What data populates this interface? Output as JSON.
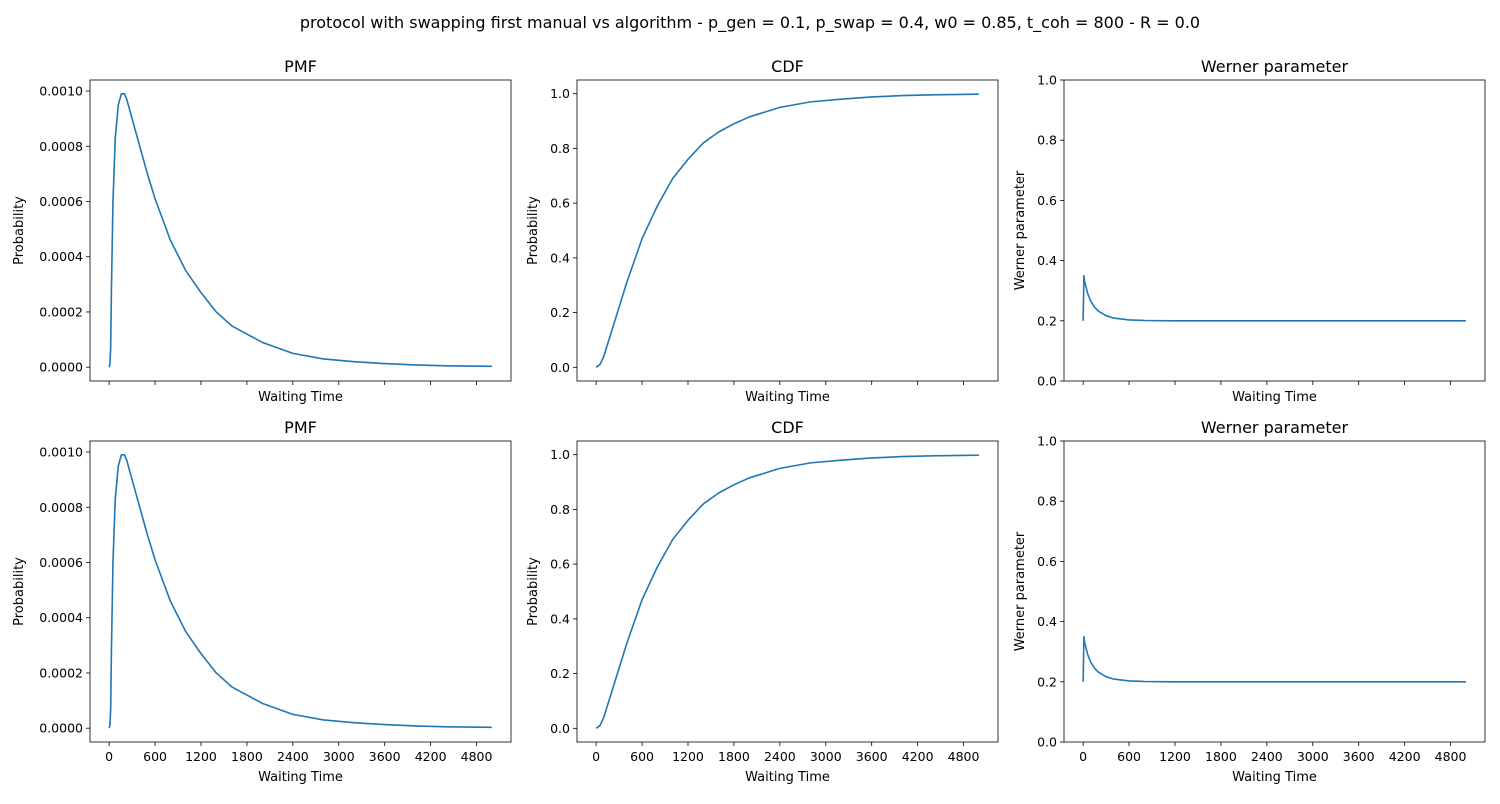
{
  "figure": {
    "title": "protocol with swapping first manual vs algorithm - p_gen = 0.1, p_swap = 0.4, w0 = 0.85, t_coh = 800 - R = 0.0"
  },
  "colors": {
    "line": "#1f77b4",
    "axes": "#000000",
    "background": "#ffffff"
  },
  "chart_data": [
    {
      "type": "line",
      "row": 0,
      "col": 0,
      "title": "PMF",
      "xlabel": "Waiting Time",
      "ylabel": "Probability",
      "xlim": [
        -250,
        5250
      ],
      "ylim": [
        -5e-05,
        0.00104
      ],
      "xticks": [
        0,
        600,
        1200,
        1800,
        2400,
        3000,
        3600,
        4200,
        4800
      ],
      "xtick_labels_shown": false,
      "yticks": [
        0.0,
        0.0002,
        0.0004,
        0.0006,
        0.0008,
        0.001
      ],
      "ytick_labels": [
        "0.0000",
        "0.0002",
        "0.0004",
        "0.0006",
        "0.0008",
        "0.0010"
      ],
      "grid": false,
      "series": [
        {
          "x": [
            0,
            10,
            20,
            30,
            50,
            80,
            120,
            160,
            200,
            230,
            260,
            300,
            400,
            500,
            600,
            800,
            1000,
            1200,
            1400,
            1600,
            1800,
            2000,
            2400,
            2800,
            3200,
            3600,
            4000,
            4400,
            5000
          ],
          "values": [
            0.0,
            1e-05,
            7e-05,
            0.00028,
            0.0006,
            0.00083,
            0.00095,
            0.00099,
            0.00099,
            0.00097,
            0.00094,
            0.0009,
            0.0008,
            0.0007,
            0.00061,
            0.00046,
            0.00035,
            0.00027,
            0.0002,
            0.00015,
            0.00012,
            9e-05,
            5e-05,
            3e-05,
            2e-05,
            1.3e-05,
            8e-06,
            5e-06,
            3e-06
          ]
        }
      ]
    },
    {
      "type": "line",
      "row": 0,
      "col": 1,
      "title": "CDF",
      "xlabel": "Waiting Time",
      "ylabel": "Probability",
      "xlim": [
        -250,
        5250
      ],
      "ylim": [
        -0.05,
        1.05
      ],
      "xticks": [
        0,
        600,
        1200,
        1800,
        2400,
        3000,
        3600,
        4200,
        4800
      ],
      "xtick_labels_shown": false,
      "yticks": [
        0.0,
        0.2,
        0.4,
        0.6,
        0.8,
        1.0
      ],
      "ytick_labels": [
        "0.0",
        "0.2",
        "0.4",
        "0.6",
        "0.8",
        "1.0"
      ],
      "grid": false,
      "series": [
        {
          "x": [
            0,
            50,
            100,
            200,
            300,
            400,
            600,
            800,
            1000,
            1200,
            1400,
            1600,
            1800,
            2000,
            2400,
            2800,
            3200,
            3600,
            4000,
            4400,
            5000
          ],
          "values": [
            0.0,
            0.01,
            0.04,
            0.13,
            0.22,
            0.31,
            0.47,
            0.59,
            0.69,
            0.76,
            0.82,
            0.86,
            0.89,
            0.915,
            0.95,
            0.97,
            0.98,
            0.988,
            0.993,
            0.996,
            0.998
          ]
        }
      ]
    },
    {
      "type": "line",
      "row": 0,
      "col": 2,
      "title": "Werner parameter",
      "xlabel": "Waiting Time",
      "ylabel": "Werner parameter",
      "xlim": [
        -250,
        5250
      ],
      "ylim": [
        0,
        1
      ],
      "xticks": [
        0,
        600,
        1200,
        1800,
        2400,
        3000,
        3600,
        4200,
        4800
      ],
      "xtick_labels_shown": false,
      "yticks": [
        0.0,
        0.2,
        0.4,
        0.6,
        0.8,
        1.0
      ],
      "ytick_labels": [
        "0.0",
        "0.2",
        "0.4",
        "0.6",
        "0.8",
        "1.0"
      ],
      "grid": false,
      "series": [
        {
          "x": [
            0,
            10,
            20,
            40,
            60,
            100,
            150,
            200,
            300,
            400,
            600,
            800,
            1000,
            1200,
            2000,
            3000,
            4000,
            5000
          ],
          "values": [
            0.2,
            0.35,
            0.33,
            0.31,
            0.29,
            0.265,
            0.245,
            0.232,
            0.217,
            0.209,
            0.203,
            0.201,
            0.2005,
            0.2,
            0.2,
            0.2,
            0.2,
            0.2
          ]
        }
      ]
    },
    {
      "type": "line",
      "row": 1,
      "col": 0,
      "title": "PMF",
      "xlabel": "Waiting Time",
      "ylabel": "Probability",
      "xlim": [
        -250,
        5250
      ],
      "ylim": [
        -5e-05,
        0.00104
      ],
      "xticks": [
        0,
        600,
        1200,
        1800,
        2400,
        3000,
        3600,
        4200,
        4800
      ],
      "xtick_labels_shown": true,
      "xtick_labels": [
        "0",
        "600",
        "1200",
        "1800",
        "2400",
        "3000",
        "3600",
        "4200",
        "4800"
      ],
      "yticks": [
        0.0,
        0.0002,
        0.0004,
        0.0006,
        0.0008,
        0.001
      ],
      "ytick_labels": [
        "0.0000",
        "0.0002",
        "0.0004",
        "0.0006",
        "0.0008",
        "0.0010"
      ],
      "grid": false,
      "series": [
        {
          "x": [
            0,
            10,
            20,
            30,
            50,
            80,
            120,
            160,
            200,
            230,
            260,
            300,
            400,
            500,
            600,
            800,
            1000,
            1200,
            1400,
            1600,
            1800,
            2000,
            2400,
            2800,
            3200,
            3600,
            4000,
            4400,
            5000
          ],
          "values": [
            0.0,
            1e-05,
            7e-05,
            0.00028,
            0.0006,
            0.00083,
            0.00095,
            0.00099,
            0.00099,
            0.00097,
            0.00094,
            0.0009,
            0.0008,
            0.0007,
            0.00061,
            0.00046,
            0.00035,
            0.00027,
            0.0002,
            0.00015,
            0.00012,
            9e-05,
            5e-05,
            3e-05,
            2e-05,
            1.3e-05,
            8e-06,
            5e-06,
            3e-06
          ]
        }
      ]
    },
    {
      "type": "line",
      "row": 1,
      "col": 1,
      "title": "CDF",
      "xlabel": "Waiting Time",
      "ylabel": "Probability",
      "xlim": [
        -250,
        5250
      ],
      "ylim": [
        -0.05,
        1.05
      ],
      "xticks": [
        0,
        600,
        1200,
        1800,
        2400,
        3000,
        3600,
        4200,
        4800
      ],
      "xtick_labels_shown": true,
      "xtick_labels": [
        "0",
        "600",
        "1200",
        "1800",
        "2400",
        "3000",
        "3600",
        "4200",
        "4800"
      ],
      "yticks": [
        0.0,
        0.2,
        0.4,
        0.6,
        0.8,
        1.0
      ],
      "ytick_labels": [
        "0.0",
        "0.2",
        "0.4",
        "0.6",
        "0.8",
        "1.0"
      ],
      "grid": false,
      "series": [
        {
          "x": [
            0,
            50,
            100,
            200,
            300,
            400,
            600,
            800,
            1000,
            1200,
            1400,
            1600,
            1800,
            2000,
            2400,
            2800,
            3200,
            3600,
            4000,
            4400,
            5000
          ],
          "values": [
            0.0,
            0.01,
            0.04,
            0.13,
            0.22,
            0.31,
            0.47,
            0.59,
            0.69,
            0.76,
            0.82,
            0.86,
            0.89,
            0.915,
            0.95,
            0.97,
            0.98,
            0.988,
            0.993,
            0.996,
            0.998
          ]
        }
      ]
    },
    {
      "type": "line",
      "row": 1,
      "col": 2,
      "title": "Werner parameter",
      "xlabel": "Waiting Time",
      "ylabel": "Werner parameter",
      "xlim": [
        -250,
        5250
      ],
      "ylim": [
        0,
        1
      ],
      "xticks": [
        0,
        600,
        1200,
        1800,
        2400,
        3000,
        3600,
        4200,
        4800
      ],
      "xtick_labels_shown": true,
      "xtick_labels": [
        "0",
        "600",
        "1200",
        "1800",
        "2400",
        "3000",
        "3600",
        "4200",
        "4800"
      ],
      "yticks": [
        0.0,
        0.2,
        0.4,
        0.6,
        0.8,
        1.0
      ],
      "ytick_labels": [
        "0.0",
        "0.2",
        "0.4",
        "0.6",
        "0.8",
        "1.0"
      ],
      "grid": false,
      "series": [
        {
          "x": [
            0,
            10,
            20,
            40,
            60,
            100,
            150,
            200,
            300,
            400,
            600,
            800,
            1000,
            1200,
            2000,
            3000,
            4000,
            5000
          ],
          "values": [
            0.2,
            0.35,
            0.33,
            0.31,
            0.29,
            0.265,
            0.245,
            0.232,
            0.217,
            0.209,
            0.203,
            0.201,
            0.2005,
            0.2,
            0.2,
            0.2,
            0.2,
            0.2
          ]
        }
      ]
    }
  ]
}
